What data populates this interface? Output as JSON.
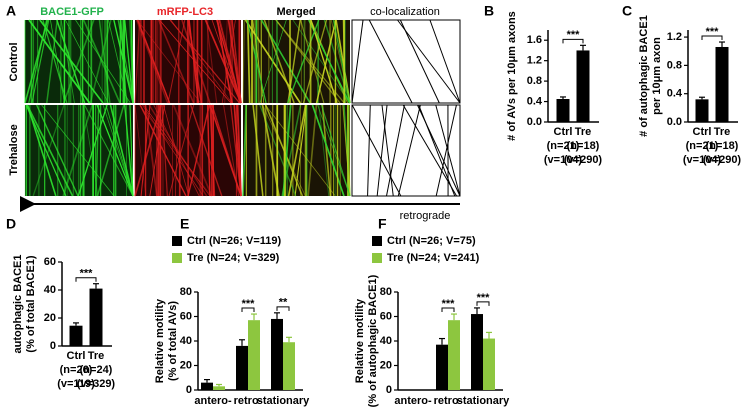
{
  "panel_a": {
    "label": "A",
    "columns": [
      "BACE1-GFP",
      "mRFP-LC3",
      "Merged",
      "co-localization"
    ],
    "rows": [
      "Control",
      "Trehalose"
    ],
    "arrow_label": "retrograde"
  },
  "chart_data": [
    {
      "type": "bar",
      "panel_label": "B",
      "ylabel": "# of AVs per 10μm axons",
      "categories": [
        "Ctrl",
        "Tre"
      ],
      "n_labels": [
        "(n=21)",
        "(n=18)"
      ],
      "v_labels": [
        "(v=104)",
        "(v=290)"
      ],
      "values": [
        0.45,
        1.4
      ],
      "errors": [
        0.04,
        0.1
      ],
      "color": "#000000",
      "ylim": [
        0,
        1.8
      ],
      "yticks": [
        {
          "value": 0,
          "label": "0.0"
        },
        0.4,
        0.8,
        1.2,
        1.6
      ],
      "significance": "***"
    },
    {
      "type": "bar",
      "panel_label": "C",
      "ylabel": [
        "# of autophagic BACE1",
        "per 10μm axon"
      ],
      "categories": [
        "Ctrl",
        "Tre"
      ],
      "n_labels": [
        "(n=21)",
        "(n=18)"
      ],
      "v_labels": [
        "(v=104)",
        "(v=290)"
      ],
      "values": [
        0.32,
        1.06
      ],
      "errors": [
        0.03,
        0.07
      ],
      "color": "#000000",
      "ylim": [
        0,
        1.3
      ],
      "yticks": [
        {
          "value": 0,
          "label": "0.0"
        },
        0.4,
        0.8,
        1.2
      ],
      "significance": "***"
    },
    {
      "type": "bar",
      "panel_label": "D",
      "ylabel": [
        "autophagic BACE1",
        "(% of total BACE1)"
      ],
      "categories": [
        "Ctrl",
        "Tre"
      ],
      "n_labels": [
        "(n=26)",
        "(n=24)"
      ],
      "v_labels": [
        "(v=119)",
        "(v=329)"
      ],
      "values": [
        14.5,
        41
      ],
      "errors": [
        2,
        3.5
      ],
      "color": "#000000",
      "ylim": [
        0,
        60
      ],
      "yticks": [
        0,
        20,
        40,
        60
      ],
      "significance": "***"
    },
    {
      "type": "grouped_bar",
      "panel_label": "E",
      "ylabel": [
        "Relative motility",
        "(% of total AVs)"
      ],
      "categories": [
        "antero-",
        "retro-",
        "stationary"
      ],
      "series": [
        {
          "name": "Ctrl (N=26; V=119)",
          "color": "#000000",
          "values": [
            6,
            36,
            58
          ],
          "errors": [
            2.5,
            5,
            5
          ]
        },
        {
          "name": "Tre (N=24; V=329)",
          "color": "#8dc63f",
          "values": [
            3,
            57,
            39
          ],
          "errors": [
            1.5,
            5,
            4
          ]
        }
      ],
      "ylim": [
        0,
        80
      ],
      "yticks": [
        0,
        20,
        40,
        60,
        80
      ],
      "significance": [
        null,
        "***",
        "**"
      ]
    },
    {
      "type": "grouped_bar",
      "panel_label": "F",
      "ylabel": [
        "Relative motility",
        "(% of autophagic BACE1)"
      ],
      "categories": [
        "antero-",
        "retro-",
        "stationary"
      ],
      "series": [
        {
          "name": "Ctrl (N=26; V=75)",
          "color": "#000000",
          "values": [
            0,
            37,
            62
          ],
          "errors": [
            0,
            5,
            5
          ]
        },
        {
          "name": "Tre (N=24; V=241)",
          "color": "#8dc63f",
          "values": [
            0,
            57,
            42
          ],
          "errors": [
            0,
            5,
            5
          ]
        }
      ],
      "ylim": [
        0,
        80
      ],
      "yticks": [
        0,
        20,
        40,
        60,
        80
      ],
      "significance": [
        null,
        "***",
        "***"
      ]
    }
  ]
}
